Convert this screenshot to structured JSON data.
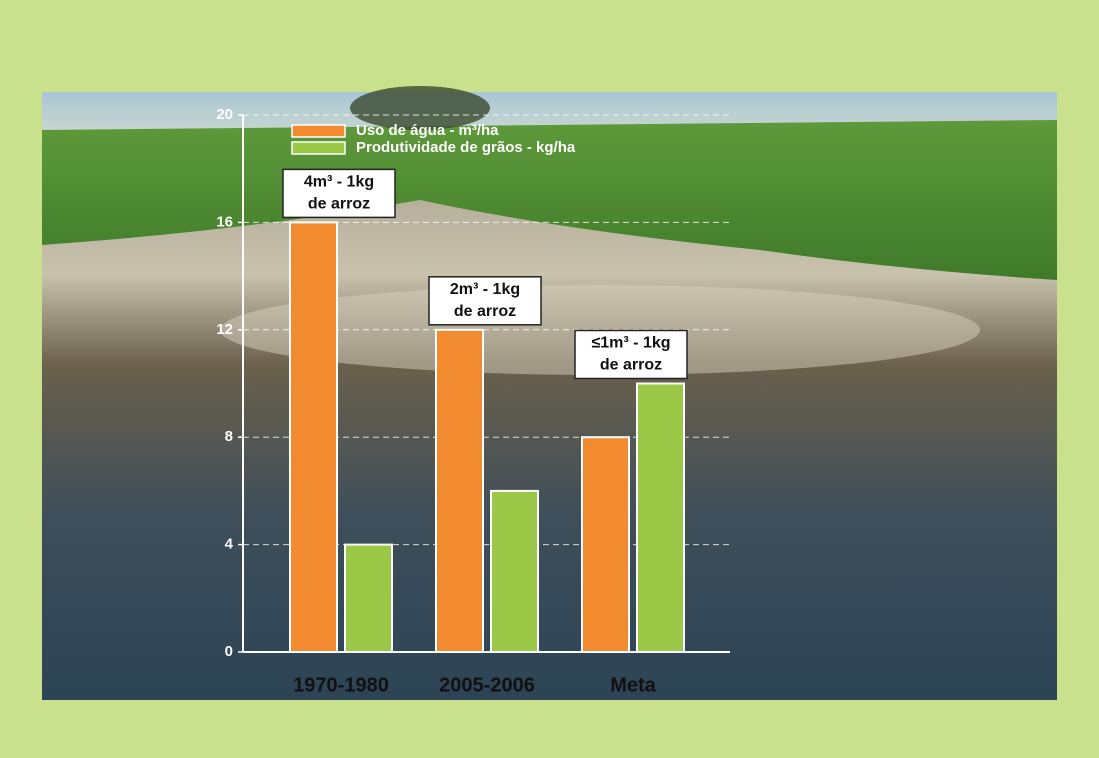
{
  "chart_data": {
    "type": "bar",
    "categories": [
      "1970-1980",
      "2005-2006",
      "Meta"
    ],
    "series": [
      {
        "name": "Uso de água - m³/ha",
        "color": "#f28a30",
        "values": [
          16,
          12,
          8
        ]
      },
      {
        "name": "Produtividade de grãos - kg/ha",
        "color": "#9cc848",
        "values": [
          4,
          6,
          10
        ]
      }
    ],
    "annotations": [
      [
        "4m³ - 1kg",
        "de arroz"
      ],
      [
        "2m³ - 1kg",
        "de arroz"
      ],
      [
        "≤1m³ - 1kg",
        "de arroz"
      ]
    ],
    "ylim": [
      0,
      20
    ],
    "yticks": [
      0,
      4,
      8,
      12,
      16,
      20
    ],
    "grid": true
  }
}
